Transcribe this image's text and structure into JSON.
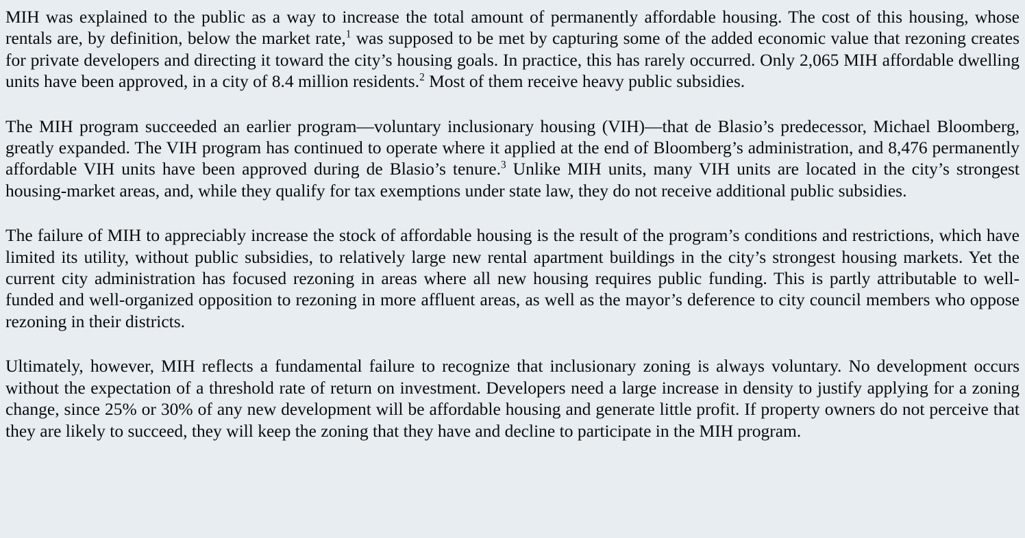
{
  "page": {
    "background_color": "#e7edf1",
    "text_color": "#0b0b0c"
  },
  "document": {
    "paragraphs": [
      {
        "segments": [
          "MIH was explained to the public as a way to increase the total amount of permanently affordable housing. The cost of this housing, whose rentals are, by definition, below the market rate,",
          {
            "sup": "1"
          },
          " was supposed to be met by capturing some of the added economic value that rezoning creates for private developers and directing it toward the city’s housing goals. In practice, this has rarely occurred. Only 2,065 MIH affordable dwelling units have been approved, in a city of 8.4 million residents.",
          {
            "sup": "2"
          },
          " Most of them receive heavy public subsidies."
        ]
      },
      {
        "segments": [
          "The MIH program succeeded an earlier program—voluntary inclusionary housing (VIH)—that de Blasio’s predecessor, Michael Bloomberg, greatly expanded. The VIH program has continued to operate where it applied at the end of Bloomberg’s administration, and 8,476 permanently affordable VIH units have been approved during de Blasio’s tenure.",
          {
            "sup": "3"
          },
          " Unlike MIH units, many VIH units are located in the city’s strongest housing-market areas, and, while they qualify for tax exemptions under state law, they do not receive additional public subsidies."
        ]
      },
      {
        "segments": [
          "The failure of MIH to appreciably increase the stock of affordable housing is the result of the program’s conditions and restrictions, which have limited its utility, without public subsidies, to relatively large new rental apartment buildings in the city’s strongest housing markets. Yet the current city administration has focused rezoning in areas where all new housing requires public funding. This is partly attributable to well-funded and well-organized opposition to rezoning in more affluent areas, as well as the mayor’s deference to city council members who oppose rezoning in their districts."
        ]
      },
      {
        "segments": [
          "Ultimately, however, MIH reflects a fundamental failure to recognize that inclusionary zoning is always voluntary. No development occurs without the expectation of a threshold rate of return on investment. Developers need a large increase in density to justify applying for a zoning change, since 25% or 30% of any new development will be affordable housing and generate little profit. If property owners do not perceive that they are likely to succeed, they will keep the zoning that they have and decline to participate in the MIH program."
        ]
      }
    ]
  }
}
